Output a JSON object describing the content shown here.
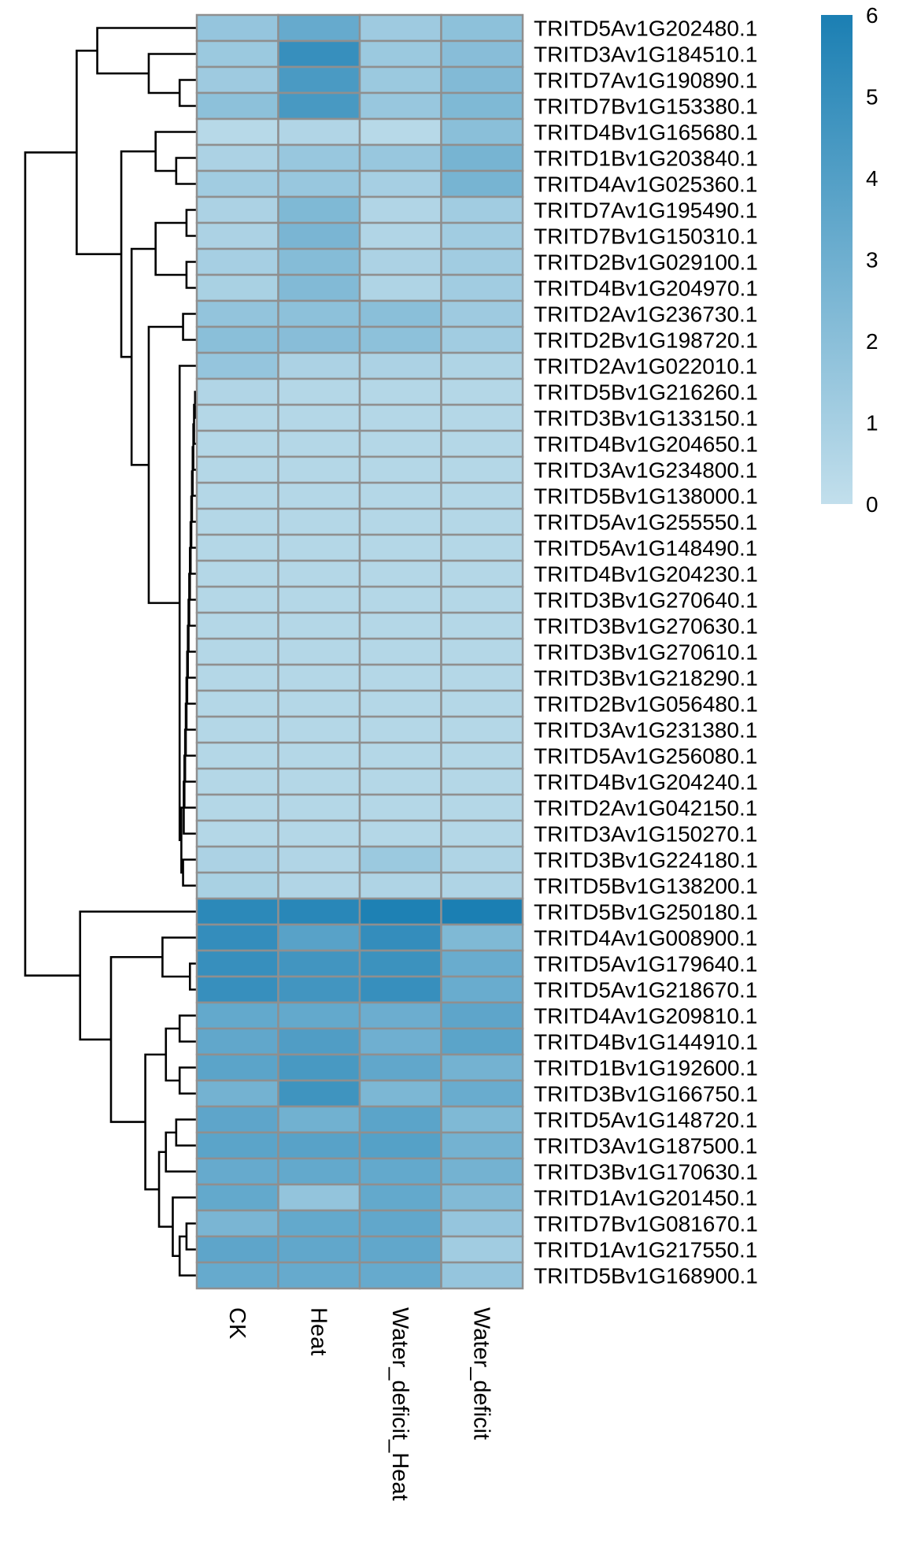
{
  "chart_data": {
    "type": "heatmap",
    "title": "",
    "xlabel": "",
    "ylabel": "",
    "columns": [
      "CK",
      "Heat",
      "Water_deficit_Heat",
      "Water_deficit"
    ],
    "rows": [
      "TRITD5Av1G202480.1",
      "TRITD3Av1G184510.1",
      "TRITD7Av1G190890.1",
      "TRITD7Bv1G153380.1",
      "TRITD4Bv1G165680.1",
      "TRITD1Bv1G203840.1",
      "TRITD4Av1G025360.1",
      "TRITD7Av1G195490.1",
      "TRITD7Bv1G150310.1",
      "TRITD2Bv1G029100.1",
      "TRITD4Bv1G204970.1",
      "TRITD2Av1G236730.1",
      "TRITD2Bv1G198720.1",
      "TRITD2Av1G022010.1",
      "TRITD5Bv1G216260.1",
      "TRITD3Bv1G133150.1",
      "TRITD4Bv1G204650.1",
      "TRITD3Av1G234800.1",
      "TRITD5Bv1G138000.1",
      "TRITD5Av1G255550.1",
      "TRITD5Av1G148490.1",
      "TRITD4Bv1G204230.1",
      "TRITD3Bv1G270640.1",
      "TRITD3Bv1G270630.1",
      "TRITD3Bv1G270610.1",
      "TRITD3Bv1G218290.1",
      "TRITD2Bv1G056480.1",
      "TRITD3Av1G231380.1",
      "TRITD5Av1G256080.1",
      "TRITD4Bv1G204240.1",
      "TRITD2Av1G042150.1",
      "TRITD3Av1G150270.1",
      "TRITD3Bv1G224180.1",
      "TRITD5Bv1G138200.1",
      "TRITD5Bv1G250180.1",
      "TRITD4Av1G008900.1",
      "TRITD5Av1G179640.1",
      "TRITD5Av1G218670.1",
      "TRITD4Av1G209810.1",
      "TRITD4Bv1G144910.1",
      "TRITD1Bv1G192600.1",
      "TRITD3Bv1G166750.1",
      "TRITD5Av1G148720.1",
      "TRITD3Av1G187500.1",
      "TRITD3Bv1G170630.1",
      "TRITD1Av1G201450.1",
      "TRITD7Bv1G081670.1",
      "TRITD1Av1G217550.1",
      "TRITD5Bv1G168900.1"
    ],
    "values": [
      [
        1.6,
        3.3,
        1.3,
        1.9
      ],
      [
        1.4,
        5.0,
        1.4,
        2.1
      ],
      [
        1.3,
        4.3,
        1.4,
        2.3
      ],
      [
        1.9,
        4.4,
        1.5,
        2.4
      ],
      [
        0.4,
        0.6,
        0.4,
        2.0
      ],
      [
        0.8,
        1.5,
        1.5,
        2.7
      ],
      [
        1.2,
        1.5,
        1.0,
        2.7
      ],
      [
        0.8,
        2.4,
        0.6,
        1.2
      ],
      [
        0.8,
        2.6,
        0.6,
        1.2
      ],
      [
        1.0,
        2.2,
        0.8,
        1.2
      ],
      [
        0.9,
        2.3,
        0.7,
        1.2
      ],
      [
        1.7,
        1.9,
        2.0,
        1.3
      ],
      [
        2.0,
        2.1,
        1.9,
        1.2
      ],
      [
        1.6,
        0.8,
        0.8,
        0.7
      ],
      [
        0.6,
        0.5,
        0.5,
        0.5
      ],
      [
        0.5,
        0.5,
        0.5,
        0.5
      ],
      [
        0.5,
        0.5,
        0.5,
        0.5
      ],
      [
        0.5,
        0.5,
        0.5,
        0.5
      ],
      [
        0.5,
        0.5,
        0.5,
        0.5
      ],
      [
        0.5,
        0.5,
        0.5,
        0.5
      ],
      [
        0.5,
        0.5,
        0.5,
        0.5
      ],
      [
        0.5,
        0.5,
        0.5,
        0.5
      ],
      [
        0.5,
        0.5,
        0.5,
        0.5
      ],
      [
        0.5,
        0.5,
        0.5,
        0.5
      ],
      [
        0.5,
        0.5,
        0.5,
        0.5
      ],
      [
        0.5,
        0.5,
        0.5,
        0.5
      ],
      [
        0.5,
        0.5,
        0.5,
        0.5
      ],
      [
        0.5,
        0.5,
        0.5,
        0.5
      ],
      [
        0.5,
        0.5,
        0.5,
        0.5
      ],
      [
        0.5,
        0.5,
        0.5,
        0.5
      ],
      [
        0.5,
        0.5,
        0.5,
        0.5
      ],
      [
        0.5,
        0.5,
        0.5,
        0.5
      ],
      [
        0.8,
        0.6,
        1.4,
        0.7
      ],
      [
        0.9,
        0.6,
        0.7,
        0.7
      ],
      [
        5.4,
        5.5,
        5.9,
        6.0
      ],
      [
        5.1,
        3.8,
        5.1,
        2.4
      ],
      [
        5.0,
        4.6,
        4.8,
        3.2
      ],
      [
        5.0,
        4.6,
        5.0,
        3.2
      ],
      [
        3.4,
        3.4,
        3.1,
        3.6
      ],
      [
        3.5,
        4.1,
        3.0,
        3.7
      ],
      [
        3.7,
        4.4,
        3.5,
        2.8
      ],
      [
        2.8,
        4.7,
        2.5,
        3.2
      ],
      [
        3.6,
        2.9,
        3.7,
        2.4
      ],
      [
        3.7,
        3.8,
        3.9,
        2.8
      ],
      [
        3.3,
        3.4,
        3.4,
        2.8
      ],
      [
        3.4,
        1.7,
        3.4,
        2.3
      ],
      [
        2.6,
        3.4,
        3.5,
        1.6
      ],
      [
        3.6,
        3.5,
        3.5,
        1.2
      ],
      [
        3.3,
        3.3,
        3.3,
        1.6
      ]
    ],
    "color_scale": {
      "min": 0,
      "max": 6,
      "low_color": "#c2dfec",
      "high_color": "#1b7fb3"
    },
    "legend": {
      "position": "top-right",
      "ticks": [
        0,
        1,
        2,
        3,
        4,
        5,
        6
      ]
    },
    "cell_border_color": "#8f8f8f",
    "dendrogram": "row",
    "dendrogram_merges": [
      {
        "a": 2,
        "b": 3,
        "h": 0.5
      },
      {
        "a": 1,
        "b": 49,
        "h": 1.4
      },
      {
        "a": 0,
        "b": 50,
        "h": 2.9
      },
      {
        "a": 5,
        "b": 6,
        "h": 0.6
      },
      {
        "a": 4,
        "b": 52,
        "h": 1.2
      },
      {
        "a": 7,
        "b": 8,
        "h": 0.3
      },
      {
        "a": 9,
        "b": 10,
        "h": 0.3
      },
      {
        "a": 54,
        "b": 55,
        "h": 1.2
      },
      {
        "a": 11,
        "b": 12,
        "h": 0.4
      },
      {
        "a": 14,
        "b": 15,
        "h": 0.05
      },
      {
        "a": 58,
        "b": 16,
        "h": 0.08
      },
      {
        "a": 59,
        "b": 17,
        "h": 0.1
      },
      {
        "a": 60,
        "b": 18,
        "h": 0.12
      },
      {
        "a": 61,
        "b": 19,
        "h": 0.14
      },
      {
        "a": 62,
        "b": 20,
        "h": 0.16
      },
      {
        "a": 63,
        "b": 21,
        "h": 0.18
      },
      {
        "a": 64,
        "b": 22,
        "h": 0.2
      },
      {
        "a": 65,
        "b": 23,
        "h": 0.22
      },
      {
        "a": 66,
        "b": 24,
        "h": 0.24
      },
      {
        "a": 67,
        "b": 25,
        "h": 0.26
      },
      {
        "a": 68,
        "b": 26,
        "h": 0.28
      },
      {
        "a": 69,
        "b": 27,
        "h": 0.3
      },
      {
        "a": 70,
        "b": 28,
        "h": 0.32
      },
      {
        "a": 71,
        "b": 29,
        "h": 0.34
      },
      {
        "a": 72,
        "b": 30,
        "h": 0.36
      },
      {
        "a": 73,
        "b": 31,
        "h": 0.38
      },
      {
        "a": 32,
        "b": 33,
        "h": 0.4
      },
      {
        "a": 74,
        "b": 75,
        "h": 0.45
      },
      {
        "a": 13,
        "b": 76,
        "h": 0.5
      },
      {
        "a": 57,
        "b": 77,
        "h": 1.4
      },
      {
        "a": 56,
        "b": 78,
        "h": 1.9
      },
      {
        "a": 53,
        "b": 79,
        "h": 2.2
      },
      {
        "a": 51,
        "b": 80,
        "h": 3.5
      },
      {
        "a": 36,
        "b": 37,
        "h": 0.2
      },
      {
        "a": 35,
        "b": 82,
        "h": 1.0
      },
      {
        "a": 38,
        "b": 39,
        "h": 0.5
      },
      {
        "a": 40,
        "b": 41,
        "h": 0.5
      },
      {
        "a": 84,
        "b": 85,
        "h": 0.9
      },
      {
        "a": 42,
        "b": 43,
        "h": 0.6
      },
      {
        "a": 44,
        "b": 87,
        "h": 0.9
      },
      {
        "a": 46,
        "b": 47,
        "h": 0.3
      },
      {
        "a": 48,
        "b": 89,
        "h": 0.5
      },
      {
        "a": 45,
        "b": 90,
        "h": 0.7
      },
      {
        "a": 88,
        "b": 91,
        "h": 1.1
      },
      {
        "a": 86,
        "b": 92,
        "h": 1.5
      },
      {
        "a": 83,
        "b": 93,
        "h": 2.5
      },
      {
        "a": 34,
        "b": 94,
        "h": 3.4
      },
      {
        "a": 81,
        "b": 95,
        "h": 5.0
      }
    ]
  }
}
